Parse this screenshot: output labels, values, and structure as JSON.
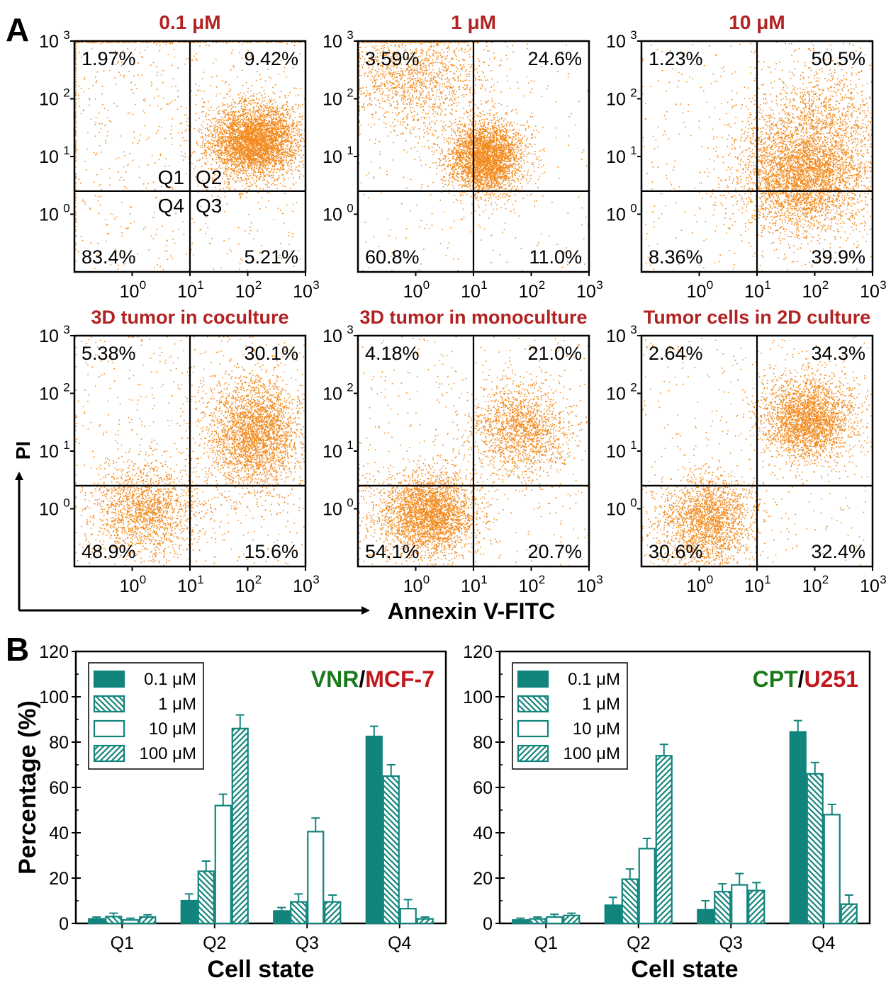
{
  "figure": {
    "panel_a_label": "A",
    "panel_b_label": "B",
    "a_xlabel": "Annexin V-FITC",
    "a_ylabel": "PI",
    "axis_ticks": [
      "10",
      "10",
      "10",
      "10"
    ],
    "axis_exponents": [
      "0",
      "1",
      "2",
      "3"
    ],
    "quadrant_names": [
      "Q1",
      "Q2",
      "Q4",
      "Q3"
    ]
  },
  "colors": {
    "dot": "#f28a1e",
    "title_red": "#b22222",
    "bar": "#11847c",
    "green": "#1a7a1a",
    "red": "#c0181e"
  },
  "chart_data": [
    {
      "type": "scatter",
      "title": "0.1 μM",
      "quadrants": {
        "Q1": "1.97%",
        "Q2": "9.42%",
        "Q3": "5.21%",
        "Q4": "83.4%"
      },
      "xlim": [
        0.1,
        1000
      ],
      "ylim": [
        0.1,
        1000
      ],
      "xscale": "log",
      "yscale": "log",
      "xgate": 10,
      "ygate": 1.6
    },
    {
      "type": "scatter",
      "title": "1 μM",
      "quadrants": {
        "Q1": "3.59%",
        "Q2": "24.6%",
        "Q3": "11.0%",
        "Q4": "60.8%"
      },
      "xlim": [
        0.1,
        1000
      ],
      "ylim": [
        0.1,
        1000
      ],
      "xscale": "log",
      "yscale": "log",
      "xgate": 10,
      "ygate": 1.6
    },
    {
      "type": "scatter",
      "title": "10 μM",
      "quadrants": {
        "Q1": "1.23%",
        "Q2": "50.5%",
        "Q3": "39.9%",
        "Q4": "8.36%"
      },
      "xlim": [
        0.1,
        1000
      ],
      "ylim": [
        0.1,
        1000
      ],
      "xscale": "log",
      "yscale": "log",
      "xgate": 10,
      "ygate": 1.6
    },
    {
      "type": "scatter",
      "title": "3D tumor in coculture",
      "quadrants": {
        "Q1": "5.38%",
        "Q2": "30.1%",
        "Q3": "15.6%",
        "Q4": "48.9%"
      },
      "xlim": [
        0.1,
        1000
      ],
      "ylim": [
        0.1,
        1000
      ],
      "xscale": "log",
      "yscale": "log",
      "xgate": 10,
      "ygate": 1.6
    },
    {
      "type": "scatter",
      "title": "3D tumor in monoculture",
      "quadrants": {
        "Q1": "4.18%",
        "Q2": "21.0%",
        "Q3": "20.7%",
        "Q4": "54.1%"
      },
      "xlim": [
        0.1,
        1000
      ],
      "ylim": [
        0.1,
        1000
      ],
      "xscale": "log",
      "yscale": "log",
      "xgate": 10,
      "ygate": 1.6
    },
    {
      "type": "scatter",
      "title": "Tumor cells in 2D culture",
      "quadrants": {
        "Q1": "2.64%",
        "Q2": "34.3%",
        "Q3": "32.4%",
        "Q4": "30.6%"
      },
      "xlim": [
        0.1,
        1000
      ],
      "ylim": [
        0.1,
        1000
      ],
      "xscale": "log",
      "yscale": "log",
      "xgate": 10,
      "ygate": 1.6
    },
    {
      "type": "bar",
      "title_left": "VNR",
      "title_sep": "/",
      "title_right": "MCF-7",
      "xlabel": "Cell state",
      "ylabel": "Percentage (%)",
      "ylim": [
        0,
        120
      ],
      "yticks": [
        0,
        20,
        40,
        60,
        80,
        100,
        120
      ],
      "categories": [
        "Q1",
        "Q2",
        "Q3",
        "Q4"
      ],
      "series": [
        {
          "name": "0.1 μM",
          "values": [
            2.0,
            10.0,
            5.5,
            82.5
          ],
          "errors": [
            0.8,
            3.0,
            1.5,
            4.5
          ]
        },
        {
          "name": "1 μM",
          "values": [
            3.0,
            23.0,
            9.5,
            65.0
          ],
          "errors": [
            1.5,
            4.5,
            3.5,
            5.0
          ]
        },
        {
          "name": "10 μM",
          "values": [
            1.5,
            52.0,
            40.5,
            6.5
          ],
          "errors": [
            0.8,
            5.0,
            6.0,
            4.0
          ]
        },
        {
          "name": "100 μM",
          "values": [
            2.8,
            86.0,
            9.5,
            2.0
          ],
          "errors": [
            1.0,
            6.0,
            3.0,
            0.8
          ]
        }
      ],
      "legend": "top-left"
    },
    {
      "type": "bar",
      "title_left": "CPT",
      "title_sep": "/",
      "title_right": "U251",
      "xlabel": "Cell state",
      "ylabel": "",
      "ylim": [
        0,
        120
      ],
      "yticks": [
        0,
        20,
        40,
        60,
        80,
        100,
        120
      ],
      "categories": [
        "Q1",
        "Q2",
        "Q3",
        "Q4"
      ],
      "series": [
        {
          "name": "0.1 μM",
          "values": [
            1.5,
            8.0,
            6.0,
            84.5
          ],
          "errors": [
            0.8,
            3.5,
            4.0,
            5.0
          ]
        },
        {
          "name": "1 μM",
          "values": [
            2.0,
            19.5,
            14.0,
            66.0
          ],
          "errors": [
            0.8,
            4.5,
            3.5,
            5.0
          ]
        },
        {
          "name": "10 μM",
          "values": [
            2.8,
            33.0,
            17.0,
            48.0
          ],
          "errors": [
            1.2,
            4.5,
            5.0,
            4.5
          ]
        },
        {
          "name": "100 μM",
          "values": [
            3.5,
            74.0,
            14.5,
            8.5
          ],
          "errors": [
            1.0,
            5.0,
            3.5,
            4.0
          ]
        }
      ],
      "legend": "top-left"
    }
  ]
}
